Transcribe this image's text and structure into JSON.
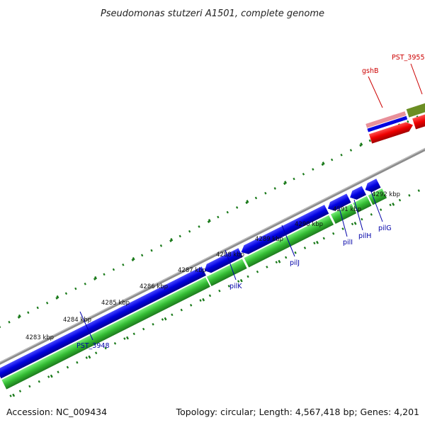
{
  "title": "Pseudomonas stutzeri A1501, complete genome",
  "footer": {
    "accession": "Accession: NC_009434",
    "summary": "Topology: circular; Length: 4,567,418 bp; Genes: 4,201"
  },
  "kbp_labels": [
    "4283 kbp",
    "4284 kbp",
    "4285 kbp",
    "4286 kbp",
    "4287 kbp",
    "4288 kbp",
    "4289 kbp",
    "4290 kbp",
    "4291 kbp",
    "4292 kbp"
  ],
  "genes": [
    {
      "id": "pst3948",
      "label": "PST_3948",
      "color": "#0000a8"
    },
    {
      "id": "pilk",
      "label": "pilK",
      "color": "#0000a8"
    },
    {
      "id": "pilj",
      "label": "pilJ",
      "color": "#0000a8"
    },
    {
      "id": "pili",
      "label": "pilI",
      "color": "#0000a8"
    },
    {
      "id": "pilh",
      "label": "pilH",
      "color": "#0000a8"
    },
    {
      "id": "pilg",
      "label": "pilG",
      "color": "#0000a8"
    },
    {
      "id": "gshb",
      "label": "gshB",
      "color": "#cc0000"
    },
    {
      "id": "pst3955",
      "label": "PST_3955",
      "color": "#cc0000"
    }
  ],
  "colors": {
    "backbone": "#909090",
    "forward_cds": "#0000e0",
    "reverse_cds": "#33cc33",
    "rna_gene": "#ee0000",
    "gc_tick": "#1a7a1a",
    "other_feature": "#6b8e23",
    "pink_feature": "#e8909a"
  }
}
